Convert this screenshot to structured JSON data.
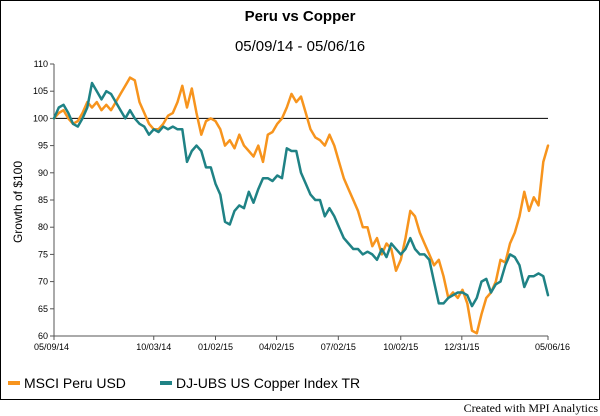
{
  "chart_data": {
    "type": "line",
    "title": "Peru vs Copper",
    "subtitle": "05/09/14 - 05/06/16",
    "ylabel": "Growth of $100",
    "ylim": [
      60,
      110
    ],
    "yticks": [
      60,
      65,
      70,
      75,
      80,
      85,
      90,
      95,
      100,
      105,
      110
    ],
    "xlim": [
      "2014-05-09",
      "2016-05-06"
    ],
    "xticks": [
      {
        "date": "2014-05-09",
        "label": "05/09/14"
      },
      {
        "date": "2014-10-03",
        "label": "10/03/14"
      },
      {
        "date": "2015-01-02",
        "label": "01/02/15"
      },
      {
        "date": "2015-04-02",
        "label": "04/02/15"
      },
      {
        "date": "2015-07-02",
        "label": "07/02/15"
      },
      {
        "date": "2015-10-02",
        "label": "10/02/15"
      },
      {
        "date": "2015-12-31",
        "label": "12/31/15"
      },
      {
        "date": "2016-05-06",
        "label": "05/06/16"
      }
    ],
    "reference_line": 100,
    "series": [
      {
        "name": "MSCI Peru USD",
        "color": "#F7941D",
        "points": [
          [
            "2014-05-09",
            100
          ],
          [
            "2014-05-16",
            101
          ],
          [
            "2014-05-23",
            101.5
          ],
          [
            "2014-05-30",
            100
          ],
          [
            "2014-06-06",
            99
          ],
          [
            "2014-06-13",
            99.5
          ],
          [
            "2014-06-20",
            101
          ],
          [
            "2014-06-27",
            103
          ],
          [
            "2014-07-04",
            102
          ],
          [
            "2014-07-11",
            103
          ],
          [
            "2014-07-18",
            101.5
          ],
          [
            "2014-07-25",
            102.5
          ],
          [
            "2014-08-01",
            101.5
          ],
          [
            "2014-08-08",
            103
          ],
          [
            "2014-08-15",
            104.5
          ],
          [
            "2014-08-22",
            106
          ],
          [
            "2014-08-29",
            107.5
          ],
          [
            "2014-09-05",
            107
          ],
          [
            "2014-09-12",
            103
          ],
          [
            "2014-09-19",
            101
          ],
          [
            "2014-09-26",
            99
          ],
          [
            "2014-10-03",
            98
          ],
          [
            "2014-10-10",
            98
          ],
          [
            "2014-10-17",
            99
          ],
          [
            "2014-10-24",
            100.5
          ],
          [
            "2014-10-31",
            101
          ],
          [
            "2014-11-07",
            103
          ],
          [
            "2014-11-14",
            106
          ],
          [
            "2014-11-21",
            102
          ],
          [
            "2014-11-28",
            105.5
          ],
          [
            "2014-12-05",
            101
          ],
          [
            "2014-12-12",
            97
          ],
          [
            "2014-12-19",
            99.5
          ],
          [
            "2014-12-26",
            100
          ],
          [
            "2015-01-02",
            99.5
          ],
          [
            "2015-01-09",
            98
          ],
          [
            "2015-01-16",
            95
          ],
          [
            "2015-01-23",
            96
          ],
          [
            "2015-01-30",
            94.5
          ],
          [
            "2015-02-06",
            97
          ],
          [
            "2015-02-13",
            95
          ],
          [
            "2015-02-20",
            94
          ],
          [
            "2015-02-27",
            93
          ],
          [
            "2015-03-06",
            95
          ],
          [
            "2015-03-13",
            92
          ],
          [
            "2015-03-20",
            97
          ],
          [
            "2015-03-27",
            97.5
          ],
          [
            "2015-04-03",
            99
          ],
          [
            "2015-04-10",
            100
          ],
          [
            "2015-04-17",
            102
          ],
          [
            "2015-04-24",
            104.5
          ],
          [
            "2015-05-01",
            103
          ],
          [
            "2015-05-08",
            104
          ],
          [
            "2015-05-15",
            101
          ],
          [
            "2015-05-22",
            98
          ],
          [
            "2015-05-29",
            96.5
          ],
          [
            "2015-06-05",
            96
          ],
          [
            "2015-06-12",
            95
          ],
          [
            "2015-06-19",
            97
          ],
          [
            "2015-06-26",
            95
          ],
          [
            "2015-07-03",
            92
          ],
          [
            "2015-07-10",
            89
          ],
          [
            "2015-07-17",
            87
          ],
          [
            "2015-07-24",
            85
          ],
          [
            "2015-07-31",
            83
          ],
          [
            "2015-08-07",
            80
          ],
          [
            "2015-08-14",
            80
          ],
          [
            "2015-08-21",
            76.5
          ],
          [
            "2015-08-28",
            78
          ],
          [
            "2015-09-04",
            75
          ],
          [
            "2015-09-11",
            77
          ],
          [
            "2015-09-18",
            76
          ],
          [
            "2015-09-25",
            72
          ],
          [
            "2015-10-02",
            74
          ],
          [
            "2015-10-09",
            78
          ],
          [
            "2015-10-16",
            83
          ],
          [
            "2015-10-23",
            82
          ],
          [
            "2015-10-30",
            79
          ],
          [
            "2015-11-06",
            77
          ],
          [
            "2015-11-13",
            75
          ],
          [
            "2015-11-20",
            73
          ],
          [
            "2015-11-27",
            74
          ],
          [
            "2015-12-04",
            71
          ],
          [
            "2015-12-11",
            67
          ],
          [
            "2015-12-18",
            68
          ],
          [
            "2015-12-25",
            67
          ],
          [
            "2016-01-01",
            68.5
          ],
          [
            "2016-01-08",
            66
          ],
          [
            "2016-01-15",
            61
          ],
          [
            "2016-01-22",
            60.5
          ],
          [
            "2016-01-29",
            64
          ],
          [
            "2016-02-05",
            67
          ],
          [
            "2016-02-12",
            68
          ],
          [
            "2016-02-19",
            70
          ],
          [
            "2016-02-26",
            74
          ],
          [
            "2016-03-04",
            73.5
          ],
          [
            "2016-03-11",
            77
          ],
          [
            "2016-03-18",
            79
          ],
          [
            "2016-03-25",
            82
          ],
          [
            "2016-04-01",
            86.5
          ],
          [
            "2016-04-08",
            83
          ],
          [
            "2016-04-15",
            85.5
          ],
          [
            "2016-04-22",
            84
          ],
          [
            "2016-04-29",
            92
          ],
          [
            "2016-05-06",
            95
          ]
        ]
      },
      {
        "name": "DJ-UBS US Copper Index TR",
        "color": "#1F8285",
        "points": [
          [
            "2014-05-09",
            100
          ],
          [
            "2014-05-16",
            102
          ],
          [
            "2014-05-23",
            102.5
          ],
          [
            "2014-05-30",
            101
          ],
          [
            "2014-06-06",
            99
          ],
          [
            "2014-06-13",
            98.5
          ],
          [
            "2014-06-20",
            100
          ],
          [
            "2014-06-27",
            102
          ],
          [
            "2014-07-04",
            106.5
          ],
          [
            "2014-07-11",
            105
          ],
          [
            "2014-07-18",
            103.5
          ],
          [
            "2014-07-25",
            105
          ],
          [
            "2014-08-01",
            104.5
          ],
          [
            "2014-08-08",
            103
          ],
          [
            "2014-08-15",
            101.5
          ],
          [
            "2014-08-22",
            100
          ],
          [
            "2014-08-29",
            101.5
          ],
          [
            "2014-09-05",
            100
          ],
          [
            "2014-09-12",
            99
          ],
          [
            "2014-09-19",
            98.5
          ],
          [
            "2014-09-26",
            97
          ],
          [
            "2014-10-03",
            98
          ],
          [
            "2014-10-10",
            97.5
          ],
          [
            "2014-10-17",
            98.5
          ],
          [
            "2014-10-24",
            98
          ],
          [
            "2014-10-31",
            98.5
          ],
          [
            "2014-11-07",
            98
          ],
          [
            "2014-11-14",
            98
          ],
          [
            "2014-11-21",
            92
          ],
          [
            "2014-11-28",
            94
          ],
          [
            "2014-12-05",
            95
          ],
          [
            "2014-12-12",
            94
          ],
          [
            "2014-12-19",
            91
          ],
          [
            "2014-12-26",
            91
          ],
          [
            "2015-01-02",
            88
          ],
          [
            "2015-01-09",
            86
          ],
          [
            "2015-01-16",
            81
          ],
          [
            "2015-01-23",
            80.5
          ],
          [
            "2015-01-30",
            83
          ],
          [
            "2015-02-06",
            84
          ],
          [
            "2015-02-13",
            83.5
          ],
          [
            "2015-02-20",
            86.5
          ],
          [
            "2015-02-27",
            84.5
          ],
          [
            "2015-03-06",
            87
          ],
          [
            "2015-03-13",
            89
          ],
          [
            "2015-03-20",
            89
          ],
          [
            "2015-03-27",
            88.5
          ],
          [
            "2015-04-03",
            89.5
          ],
          [
            "2015-04-10",
            89
          ],
          [
            "2015-04-17",
            94.5
          ],
          [
            "2015-04-24",
            94
          ],
          [
            "2015-05-01",
            94
          ],
          [
            "2015-05-08",
            90
          ],
          [
            "2015-05-15",
            88
          ],
          [
            "2015-05-22",
            86
          ],
          [
            "2015-05-29",
            85
          ],
          [
            "2015-06-05",
            85
          ],
          [
            "2015-06-12",
            82
          ],
          [
            "2015-06-19",
            83.5
          ],
          [
            "2015-06-26",
            82
          ],
          [
            "2015-07-03",
            80
          ],
          [
            "2015-07-10",
            78
          ],
          [
            "2015-07-17",
            77
          ],
          [
            "2015-07-24",
            76
          ],
          [
            "2015-07-31",
            76
          ],
          [
            "2015-08-07",
            75
          ],
          [
            "2015-08-14",
            75.5
          ],
          [
            "2015-08-21",
            75
          ],
          [
            "2015-08-28",
            74
          ],
          [
            "2015-09-04",
            76
          ],
          [
            "2015-09-11",
            74.5
          ],
          [
            "2015-09-18",
            77
          ],
          [
            "2015-09-25",
            76
          ],
          [
            "2015-10-02",
            75
          ],
          [
            "2015-10-09",
            76
          ],
          [
            "2015-10-16",
            78
          ],
          [
            "2015-10-23",
            76
          ],
          [
            "2015-10-30",
            75
          ],
          [
            "2015-11-06",
            75
          ],
          [
            "2015-11-13",
            74
          ],
          [
            "2015-11-20",
            70
          ],
          [
            "2015-11-27",
            66
          ],
          [
            "2015-12-04",
            66
          ],
          [
            "2015-12-11",
            67
          ],
          [
            "2015-12-18",
            67.5
          ],
          [
            "2015-12-25",
            68
          ],
          [
            "2016-01-01",
            68
          ],
          [
            "2016-01-08",
            67.5
          ],
          [
            "2016-01-15",
            65.5
          ],
          [
            "2016-01-22",
            67
          ],
          [
            "2016-01-29",
            70
          ],
          [
            "2016-02-05",
            70.5
          ],
          [
            "2016-02-12",
            68
          ],
          [
            "2016-02-19",
            69.5
          ],
          [
            "2016-02-26",
            70
          ],
          [
            "2016-03-04",
            73
          ],
          [
            "2016-03-11",
            75
          ],
          [
            "2016-03-18",
            74.5
          ],
          [
            "2016-03-25",
            73
          ],
          [
            "2016-04-01",
            69
          ],
          [
            "2016-04-08",
            71
          ],
          [
            "2016-04-15",
            71
          ],
          [
            "2016-04-22",
            71.5
          ],
          [
            "2016-04-29",
            71
          ],
          [
            "2016-05-06",
            67.5
          ]
        ]
      }
    ]
  },
  "legend": {
    "peru_label": "MSCI Peru USD",
    "peru_color": "#F7941D",
    "copper_label": "DJ-UBS US Copper Index TR",
    "copper_color": "#1F8285"
  },
  "credit": "Created with MPI Analytics"
}
